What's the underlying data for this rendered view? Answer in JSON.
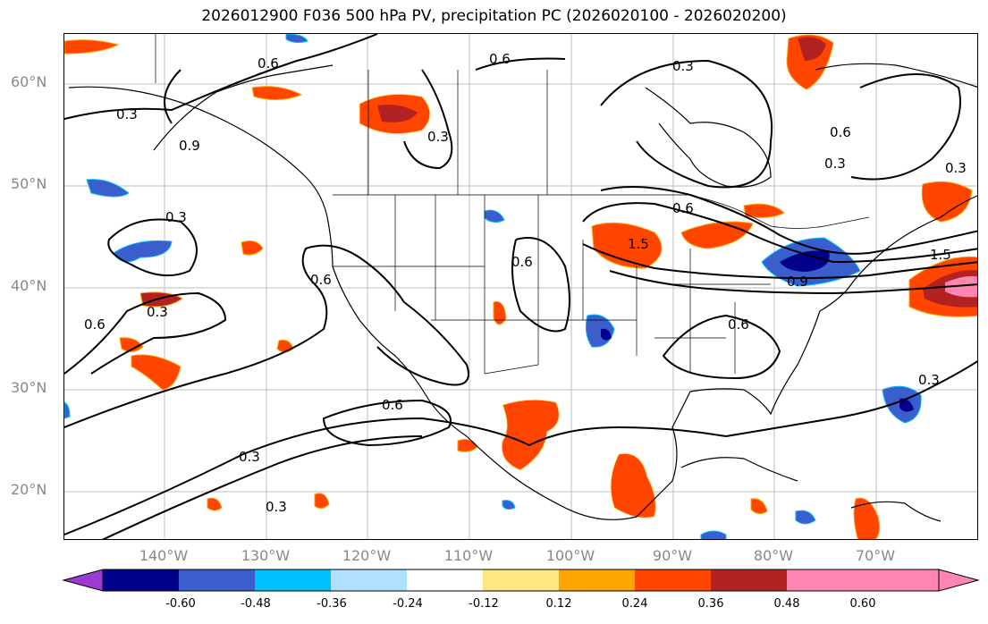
{
  "title": "2026012900 F036 500 hPa PV, precipitation PC (2026020100 - 2026020200)",
  "lat_labels": [
    "60°N",
    "50°N",
    "40°N",
    "30°N",
    "20°N"
  ],
  "lon_labels": [
    "140°W",
    "130°W",
    "120°W",
    "110°W",
    "100°W",
    "90°W",
    "80°W",
    "70°W"
  ],
  "contour_labels": [
    "0.6",
    "0.6",
    "0.3",
    "0.3",
    "0.3",
    "0.9",
    "0.3",
    "0.6",
    "0.6",
    "0.3",
    "0.6",
    "0.6",
    "1.5",
    "0.6",
    "0.9",
    "0.6",
    "0.3",
    "1.5",
    "0.3",
    "0.6",
    "0.3",
    "0.3",
    "0.3"
  ],
  "colorbar": {
    "labels": [
      "-0.60",
      "-0.48",
      "-0.36",
      "-0.24",
      "-0.12",
      "0.12",
      "0.24",
      "0.36",
      "0.48",
      "0.60"
    ],
    "colors": [
      "#9b3bd4",
      "#00008b",
      "#3a5fcd",
      "#00bfff",
      "#b0e0ff",
      "#ffffff",
      "#ffe680",
      "#ffa500",
      "#ff4500",
      "#b22222",
      "#ff85b3",
      "#ff85b3"
    ]
  },
  "chart_data": {
    "type": "map",
    "title": "2026012900 F036 500 hPa PV, precipitation PC (2026020100 - 2026020200)",
    "lon_range": [
      -150,
      -60
    ],
    "lat_range": [
      15,
      65
    ],
    "grid": true,
    "contour_levels": [
      0.3,
      0.6,
      0.9,
      1.2,
      1.5
    ],
    "fill_levels": [
      -0.6,
      -0.48,
      -0.36,
      -0.24,
      -0.12,
      0.12,
      0.24,
      0.36,
      0.48,
      0.6
    ]
  }
}
